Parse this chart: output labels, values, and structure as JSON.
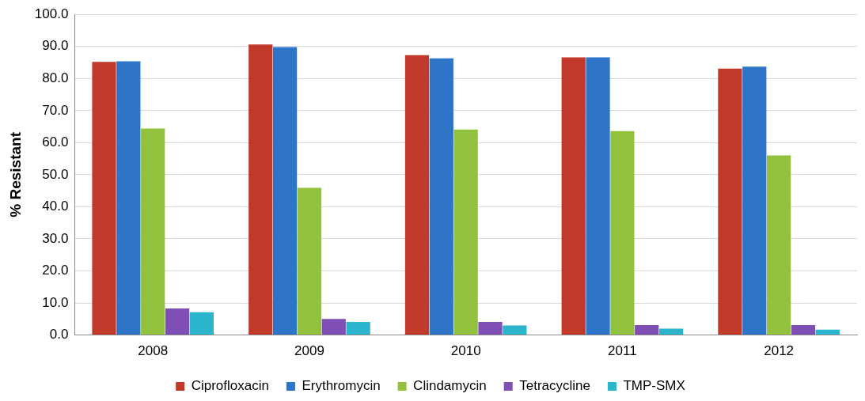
{
  "chart_data": {
    "type": "bar",
    "ylabel": "% Resistant",
    "categories": [
      "2008",
      "2009",
      "2010",
      "2011",
      "2012"
    ],
    "series": [
      {
        "name": "Ciprofloxacin",
        "color": "#c0392b",
        "values": [
          85.2,
          90.6,
          87.3,
          86.6,
          83.1
        ]
      },
      {
        "name": "Erythromycin",
        "color": "#2e75c8",
        "values": [
          85.4,
          89.8,
          86.3,
          86.6,
          83.7
        ]
      },
      {
        "name": "Clindamycin",
        "color": "#92c13e",
        "values": [
          64.4,
          45.9,
          64.1,
          63.6,
          56.0
        ]
      },
      {
        "name": "Tetracycline",
        "color": "#7f4fb5",
        "values": [
          8.3,
          5.0,
          4.1,
          3.1,
          3.1
        ]
      },
      {
        "name": "TMP-SMX",
        "color": "#2bb5cc",
        "values": [
          7.1,
          4.1,
          3.0,
          2.0,
          1.7
        ]
      }
    ],
    "ylim": [
      0,
      100
    ],
    "yticks": [
      {
        "value": 0,
        "label": "0.0"
      },
      {
        "value": 10,
        "label": "10.0"
      },
      {
        "value": 20,
        "label": "20.0"
      },
      {
        "value": 30,
        "label": "30.0"
      },
      {
        "value": 40,
        "label": "40.0"
      },
      {
        "value": 50,
        "label": "50.0"
      },
      {
        "value": 60,
        "label": "60.0"
      },
      {
        "value": 70,
        "label": "70.0"
      },
      {
        "value": 80,
        "label": "80.0"
      },
      {
        "value": 90,
        "label": "90.0"
      },
      {
        "value": 100,
        "label": "100.0"
      }
    ],
    "grid": "y",
    "legend": "bottom"
  }
}
